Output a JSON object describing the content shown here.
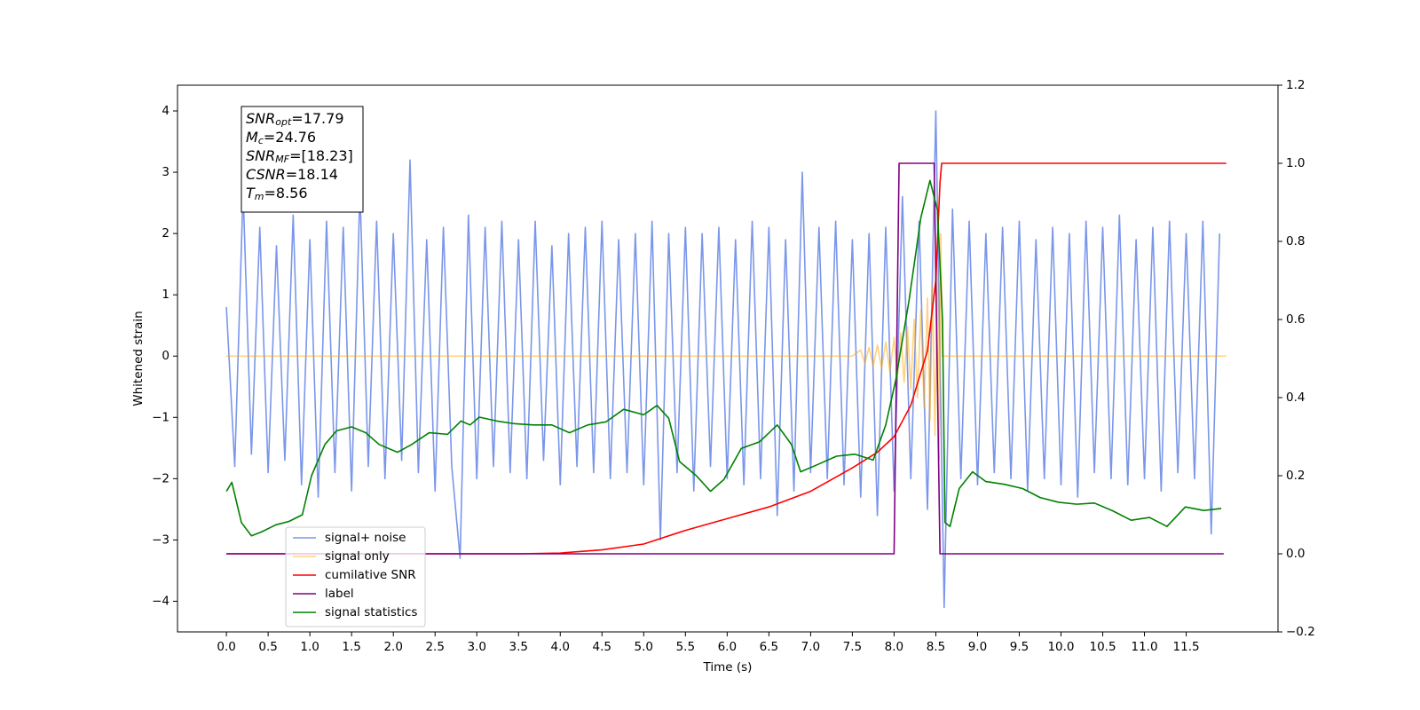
{
  "chart_data": {
    "type": "line",
    "xlabel": "Time (s)",
    "ylabel": "Whitened strain",
    "xlim": [
      -0.586,
      12.6
    ],
    "ylim": [
      -4.5,
      4.42
    ],
    "y2lim": [
      -0.2,
      1.2
    ],
    "xticks": [
      {
        "value": 0,
        "label": "0.0"
      },
      0.5,
      {
        "value": 1,
        "label": "1.0"
      },
      1.5,
      {
        "value": 2,
        "label": "2.0"
      },
      2.5,
      {
        "value": 3,
        "label": "3.0"
      },
      3.5,
      {
        "value": 4,
        "label": "4.0"
      },
      4.5,
      {
        "value": 5,
        "label": "5.0"
      },
      5.5,
      {
        "value": 6,
        "label": "6.0"
      },
      6.5,
      {
        "value": 7,
        "label": "7.0"
      },
      7.5,
      {
        "value": 8,
        "label": "8.0"
      },
      8.5,
      {
        "value": 9,
        "label": "9.0"
      },
      9.5,
      {
        "value": 10,
        "label": "10.0"
      },
      10.5,
      {
        "value": 11,
        "label": "11.0"
      },
      11.5
    ],
    "yticks": [
      {
        "value": -4,
        "label": "−4"
      },
      {
        "value": -3,
        "label": "−3"
      },
      {
        "value": -2,
        "label": "−2"
      },
      {
        "value": -1,
        "label": "−1"
      },
      0,
      1,
      2,
      3,
      4
    ],
    "y2ticks": [
      {
        "value": -0.2,
        "label": "−0.2"
      },
      {
        "value": 0,
        "label": "0.0"
      },
      0.2,
      0.4,
      0.6,
      0.8,
      {
        "value": 1,
        "label": "1.0"
      },
      1.2
    ],
    "legend": "lower left",
    "annotation": [
      {
        "main": "SNR",
        "sub": "opt",
        "rest": "=17.79"
      },
      {
        "main": "M",
        "sub": "c",
        "rest": "=24.76"
      },
      {
        "main": "SNR",
        "sub": "MF",
        "rest": "=[18.23]"
      },
      {
        "main": "CSNR",
        "rest": "=18.14"
      },
      {
        "main": "T",
        "sub": "m",
        "rest": "=8.56"
      }
    ],
    "series": [
      {
        "name": "signal+ noise",
        "color": "#4169e1",
        "opacity": 0.7,
        "x": [
          0,
          0.1,
          0.2,
          0.3,
          0.4,
          0.5,
          0.6,
          0.7,
          0.8,
          0.9,
          1,
          1.1,
          1.2,
          1.3,
          1.4,
          1.5,
          1.6,
          1.7,
          1.8,
          1.9,
          2,
          2.1,
          2.2,
          2.3,
          2.4,
          2.5,
          2.6,
          2.7,
          2.8,
          2.9,
          3,
          3.1,
          3.2,
          3.3,
          3.4,
          3.5,
          3.6,
          3.7,
          3.8,
          3.9,
          4,
          4.1,
          4.2,
          4.3,
          4.4,
          4.5,
          4.6,
          4.7,
          4.8,
          4.9,
          5,
          5.1,
          5.2,
          5.3,
          5.4,
          5.5,
          5.6,
          5.7,
          5.8,
          5.9,
          6,
          6.1,
          6.2,
          6.3,
          6.4,
          6.5,
          6.6,
          6.7,
          6.8,
          6.9,
          7,
          7.1,
          7.2,
          7.3,
          7.4,
          7.5,
          7.6,
          7.7,
          7.8,
          7.9,
          8,
          8.1,
          8.2,
          8.3,
          8.4,
          8.5,
          8.6,
          8.7,
          8.8,
          8.9,
          9,
          9.1,
          9.2,
          9.3,
          9.4,
          9.5,
          9.6,
          9.7,
          9.8,
          9.9,
          10,
          10.1,
          10.2,
          10.3,
          10.4,
          10.5,
          10.6,
          10.7,
          10.8,
          10.9,
          11,
          11.1,
          11.2,
          11.3,
          11.4,
          11.5,
          11.6,
          11.7,
          11.8,
          11.9
        ],
        "values": [
          0.8,
          -1.8,
          2.7,
          -1.6,
          2.1,
          -1.9,
          1.8,
          -1.7,
          2.3,
          -2.1,
          1.9,
          -2.3,
          2.2,
          -1.9,
          2.1,
          -2.2,
          2.7,
          -1.8,
          2.2,
          -2.0,
          2.0,
          -1.7,
          3.2,
          -1.9,
          1.9,
          -2.2,
          2.1,
          -1.8,
          -3.3,
          2.3,
          -2.0,
          2.1,
          -1.8,
          2.2,
          -1.9,
          1.9,
          -2.0,
          2.2,
          -1.7,
          1.8,
          -2.1,
          2.0,
          -1.8,
          2.1,
          -1.9,
          2.2,
          -2.0,
          1.9,
          -1.9,
          2.0,
          -2.1,
          2.2,
          -3.0,
          2.0,
          -1.9,
          2.1,
          -2.2,
          2.0,
          -1.8,
          2.1,
          -2.0,
          1.9,
          -2.1,
          2.2,
          -2.0,
          2.1,
          -2.6,
          1.9,
          -2.2,
          3.0,
          -1.9,
          2.1,
          -2.0,
          2.2,
          -2.1,
          1.9,
          -2.3,
          2.0,
          -2.6,
          2.1,
          -2.2,
          2.6,
          -2.0,
          2.2,
          -2.5,
          4.0,
          -4.1,
          2.4,
          -2.0,
          2.2,
          -2.1,
          2.0,
          -1.9,
          2.1,
          -2.0,
          2.2,
          -2.2,
          1.9,
          -2.0,
          2.1,
          -2.1,
          2.0,
          -2.3,
          2.2,
          -1.9,
          2.1,
          -2.0,
          2.3,
          -2.1,
          1.9,
          -2.0,
          2.1,
          -2.2,
          2.2,
          -1.9,
          2.0,
          -2.0,
          2.2,
          -2.9,
          2.0
        ]
      },
      {
        "name": "signal only",
        "color": "#ffa500",
        "opacity": 0.5,
        "x": [
          0,
          7.5,
          7.6,
          7.65,
          7.7,
          7.75,
          7.8,
          7.85,
          7.9,
          7.95,
          8.0,
          8.04,
          8.08,
          8.12,
          8.16,
          8.2,
          8.24,
          8.28,
          8.32,
          8.36,
          8.4,
          8.43,
          8.46,
          8.49,
          8.52,
          8.54,
          8.56,
          8.58,
          11.98
        ],
        "values": [
          0,
          0,
          0.1,
          -0.12,
          0.14,
          -0.16,
          0.18,
          -0.2,
          0.23,
          -0.26,
          0.3,
          -0.34,
          0.38,
          -0.43,
          0.48,
          -0.54,
          0.6,
          -0.68,
          0.76,
          -0.85,
          0.95,
          -1.05,
          1.15,
          -1.3,
          1.5,
          -1.7,
          2.0,
          0,
          0
        ]
      },
      {
        "name": "cumilative SNR",
        "color": "#ff0000",
        "opacity": 1,
        "axis": "y2",
        "x": [
          0,
          3.5,
          4.0,
          4.5,
          5.0,
          5.5,
          6.0,
          6.5,
          7.0,
          7.5,
          7.8,
          8.0,
          8.2,
          8.4,
          8.5,
          8.55,
          8.57,
          11.98
        ],
        "values": [
          0,
          0,
          0.002,
          0.01,
          0.025,
          0.06,
          0.09,
          0.12,
          0.16,
          0.22,
          0.26,
          0.3,
          0.38,
          0.52,
          0.7,
          0.95,
          1.0,
          1.0
        ]
      },
      {
        "name": "label",
        "color": "#800080",
        "opacity": 1,
        "axis": "y2",
        "x": [
          0,
          8.0,
          8.06,
          8.48,
          8.55,
          11.95
        ],
        "values": [
          0,
          0,
          1,
          1,
          0,
          0
        ]
      },
      {
        "name": "signal statistics",
        "color": "#008000",
        "opacity": 1,
        "axis": "y2",
        "x": [
          0,
          0.065,
          0.18,
          0.3,
          0.42,
          0.59,
          0.75,
          0.91,
          1.02,
          1.18,
          1.32,
          1.5,
          1.67,
          1.83,
          2.05,
          2.22,
          2.43,
          2.65,
          2.81,
          2.92,
          3.03,
          3.24,
          3.46,
          3.68,
          3.9,
          4.11,
          4.33,
          4.55,
          4.76,
          5.0,
          5.16,
          5.3,
          5.43,
          5.63,
          5.8,
          5.96,
          6.17,
          6.39,
          6.6,
          6.77,
          6.88,
          7.1,
          7.31,
          7.53,
          7.75,
          7.9,
          8.02,
          8.18,
          8.32,
          8.43,
          8.52,
          8.58,
          8.61,
          8.67,
          8.78,
          8.94,
          9.1,
          9.32,
          9.54,
          9.75,
          9.97,
          10.19,
          10.4,
          10.62,
          10.84,
          11.06,
          11.27,
          11.49,
          11.71,
          11.92
        ],
        "values": [
          0.16,
          0.183,
          0.08,
          0.046,
          0.056,
          0.074,
          0.083,
          0.1,
          0.2,
          0.28,
          0.315,
          0.325,
          0.31,
          0.28,
          0.26,
          0.28,
          0.31,
          0.306,
          0.34,
          0.33,
          0.35,
          0.34,
          0.333,
          0.33,
          0.33,
          0.31,
          0.33,
          0.338,
          0.37,
          0.356,
          0.38,
          0.347,
          0.236,
          0.2,
          0.16,
          0.19,
          0.27,
          0.287,
          0.33,
          0.28,
          0.21,
          0.23,
          0.25,
          0.255,
          0.24,
          0.33,
          0.445,
          0.65,
          0.86,
          0.956,
          0.88,
          0.6,
          0.08,
          0.07,
          0.167,
          0.21,
          0.185,
          0.178,
          0.167,
          0.144,
          0.132,
          0.127,
          0.13,
          0.11,
          0.086,
          0.093,
          0.07,
          0.12,
          0.111,
          0.116
        ]
      }
    ]
  }
}
